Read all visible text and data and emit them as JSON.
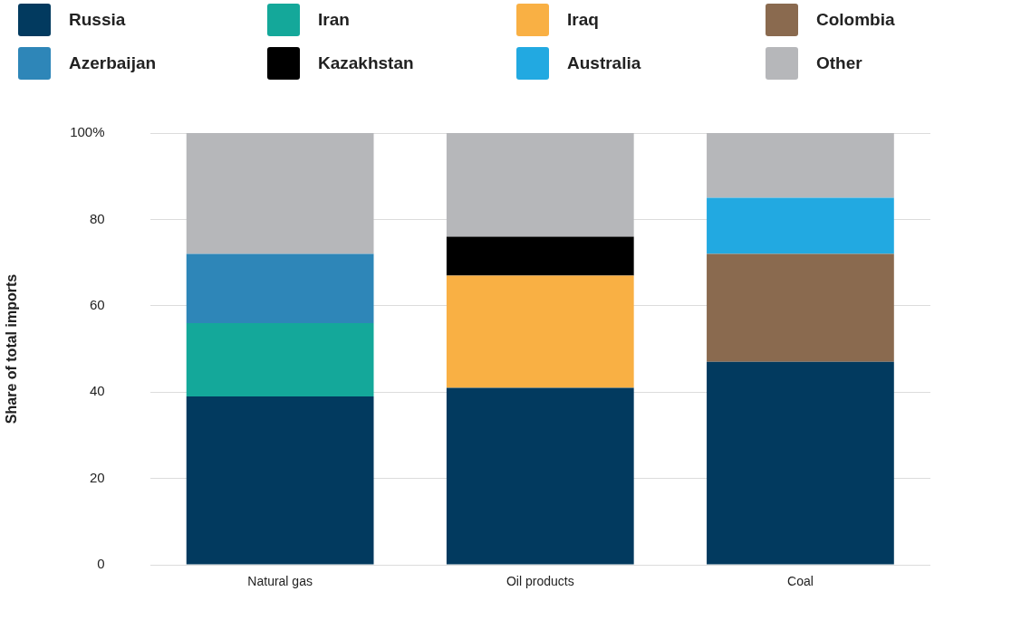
{
  "chart_data": {
    "type": "bar",
    "stacked": true,
    "ylabel": "Share of total imports",
    "categories": [
      "Natural gas",
      "Oil products",
      "Coal"
    ],
    "series": [
      {
        "name": "Russia",
        "color": "#023a5f",
        "values": [
          39,
          41,
          47
        ]
      },
      {
        "name": "Iran",
        "color": "#14a89a",
        "values": [
          17,
          null,
          null
        ]
      },
      {
        "name": "Iraq",
        "color": "#f9b044",
        "values": [
          null,
          26,
          null
        ]
      },
      {
        "name": "Colombia",
        "color": "#8a6a4f",
        "values": [
          null,
          null,
          25
        ]
      },
      {
        "name": "Azerbaijan",
        "color": "#2e86b8",
        "values": [
          16,
          null,
          null
        ]
      },
      {
        "name": "Kazakhstan",
        "color": "#000000",
        "values": [
          null,
          9,
          null
        ]
      },
      {
        "name": "Australia",
        "color": "#22a9e1",
        "values": [
          null,
          null,
          13
        ]
      },
      {
        "name": "Other",
        "color": "#b6b7ba",
        "values": [
          28,
          24,
          15
        ]
      }
    ],
    "ylim": [
      0,
      100
    ],
    "yticks": [
      0,
      20,
      40,
      60,
      80,
      {
        "value": 100,
        "label": "100%"
      }
    ],
    "grid": "y",
    "legend": "top"
  }
}
